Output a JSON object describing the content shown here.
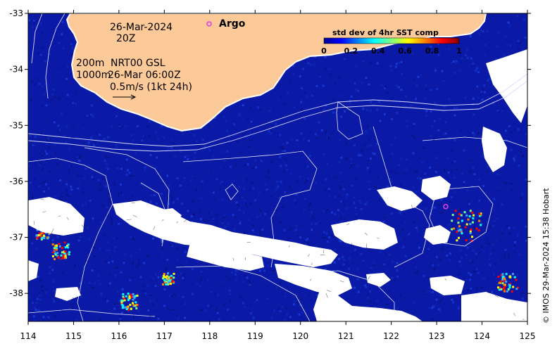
{
  "map": {
    "date": "26-Mar-2024",
    "hour": "20Z",
    "argo_label": "Argo",
    "iso_200": "200m",
    "iso_1000": "1000m",
    "source_line1": "NRT00 GSL",
    "source_line2": "26-Mar 06:00Z",
    "vector_scale": "0.5m/s (1kt 24h)",
    "credit": "© IMOS 29-Mar-2024 15:38 Hobart",
    "lon_ticks": [
      "114",
      "115",
      "116",
      "117",
      "118",
      "119",
      "120",
      "121",
      "122",
      "123",
      "124",
      "125"
    ],
    "lat_ticks": [
      "-33",
      "-34",
      "-35",
      "-36",
      "-37",
      "-38"
    ],
    "lon_range": [
      114,
      125
    ],
    "lat_range": [
      -38.5,
      -33
    ],
    "argo_float": {
      "lon": 123.2,
      "lat": -36.45
    },
    "colors": {
      "land": "#fcc999",
      "ocean_background": "#0a1aa6",
      "cloud_mask": "#ffffff",
      "argo_marker": "#e040e0"
    }
  },
  "colorbar": {
    "title": "std dev of 4hr SST comp",
    "ticks": [
      "0",
      "0.2",
      "0.4",
      "0.6",
      "0.8",
      "1"
    ],
    "range": [
      0,
      1
    ],
    "colormap": "jet"
  }
}
